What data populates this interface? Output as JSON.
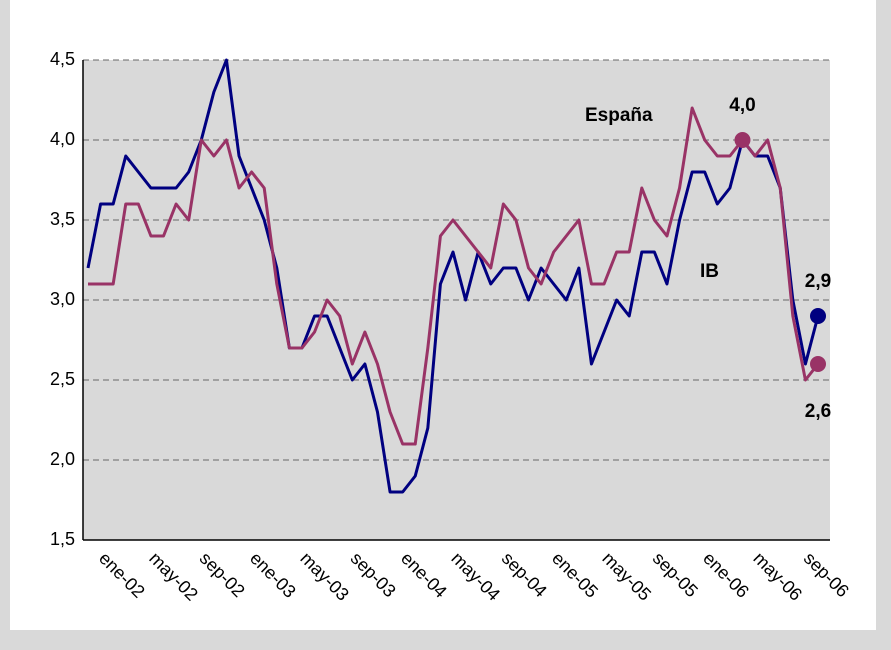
{
  "chart_data": {
    "type": "line",
    "categories": [
      null,
      null,
      "ene-02",
      null,
      null,
      null,
      "may-02",
      null,
      null,
      null,
      "sep-02",
      null,
      null,
      null,
      "ene-03",
      null,
      null,
      null,
      "may-03",
      null,
      null,
      null,
      "sep-03",
      null,
      null,
      null,
      "ene-04",
      null,
      null,
      null,
      "may-04",
      null,
      null,
      null,
      "sep-04",
      null,
      null,
      null,
      "ene-05",
      null,
      null,
      null,
      "may-05",
      null,
      null,
      null,
      "sep-05",
      null,
      null,
      null,
      "ene-06",
      null,
      null,
      null,
      "may-06",
      null,
      null,
      null,
      "sep-06"
    ],
    "series": [
      {
        "name": "IB",
        "color": "#000080",
        "label_color": "#3333aa",
        "values": [
          3.2,
          3.6,
          3.6,
          3.9,
          3.8,
          3.7,
          3.7,
          3.7,
          3.8,
          4.0,
          4.3,
          4.5,
          3.9,
          3.7,
          3.5,
          3.2,
          2.7,
          2.7,
          2.9,
          2.9,
          2.7,
          2.5,
          2.6,
          2.3,
          1.8,
          1.8,
          1.9,
          2.2,
          3.1,
          3.3,
          3.0,
          3.3,
          3.1,
          3.2,
          3.2,
          3.0,
          3.2,
          3.1,
          3.0,
          3.2,
          2.6,
          2.8,
          3.0,
          2.9,
          3.3,
          3.3,
          3.1,
          3.5,
          3.8,
          3.8,
          3.6,
          3.7,
          4.0,
          3.9,
          3.9,
          3.7,
          3.0,
          2.6,
          2.9
        ],
        "value_labels": [
          null,
          null,
          null,
          null,
          null,
          null,
          null,
          null,
          null,
          null,
          null,
          null,
          null,
          null,
          null,
          null,
          null,
          null,
          null,
          null,
          null,
          null,
          null,
          null,
          null,
          null,
          null,
          null,
          null,
          null,
          null,
          null,
          null,
          null,
          null,
          null,
          null,
          null,
          null,
          null,
          null,
          null,
          null,
          null,
          null,
          null,
          null,
          null,
          null,
          null,
          null,
          null,
          null,
          null,
          null,
          null,
          null,
          null,
          "2,9"
        ]
      },
      {
        "name": "España",
        "color": "#993366",
        "label_color": "#993366",
        "values": [
          3.1,
          3.1,
          3.1,
          3.6,
          3.6,
          3.4,
          3.4,
          3.6,
          3.5,
          4.0,
          3.9,
          4.0,
          3.7,
          3.8,
          3.7,
          3.1,
          2.7,
          2.7,
          2.8,
          3.0,
          2.9,
          2.6,
          2.8,
          2.6,
          2.3,
          2.1,
          2.1,
          2.7,
          3.4,
          3.5,
          3.4,
          3.3,
          3.2,
          3.6,
          3.5,
          3.2,
          3.1,
          3.3,
          3.4,
          3.5,
          3.1,
          3.1,
          3.3,
          3.3,
          3.7,
          3.5,
          3.4,
          3.7,
          4.2,
          4.0,
          3.9,
          3.9,
          4.0,
          3.9,
          4.0,
          3.7,
          2.9,
          2.5,
          2.6
        ],
        "value_labels": [
          null,
          null,
          null,
          null,
          null,
          null,
          null,
          null,
          null,
          null,
          null,
          null,
          null,
          null,
          null,
          null,
          null,
          null,
          null,
          null,
          null,
          null,
          null,
          null,
          null,
          null,
          null,
          null,
          null,
          null,
          null,
          null,
          null,
          null,
          null,
          null,
          null,
          null,
          null,
          null,
          null,
          null,
          null,
          null,
          null,
          null,
          null,
          null,
          null,
          null,
          null,
          null,
          "4,0",
          null,
          null,
          null,
          null,
          null,
          "2,6"
        ]
      }
    ],
    "ylim": [
      1.5,
      4.5
    ],
    "yticks": [
      {
        "value": 1.5,
        "label": "1,5"
      },
      {
        "value": 2.0,
        "label": "2,0"
      },
      {
        "value": 2.5,
        "label": "2,5"
      },
      {
        "value": 3.0,
        "label": "3,0"
      },
      {
        "value": 3.5,
        "label": "3,5"
      },
      {
        "value": 4.0,
        "label": "4,0"
      },
      {
        "value": 4.5,
        "label": "4,5"
      }
    ],
    "grid": true
  }
}
